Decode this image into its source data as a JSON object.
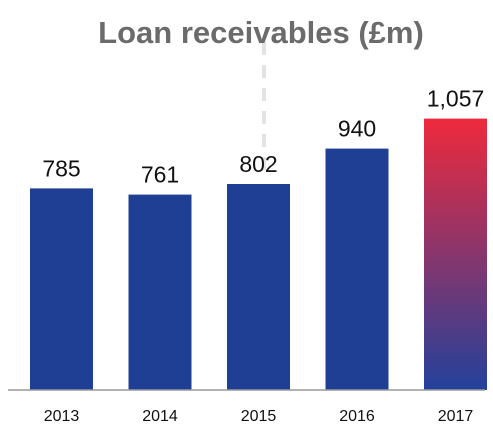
{
  "chart_data": {
    "type": "bar",
    "title": "Loan receivables (£m)",
    "categories": [
      "2013",
      "2014",
      "2015",
      "2016",
      "2017"
    ],
    "values": [
      785,
      761,
      802,
      940,
      1057
    ],
    "value_labels": [
      "785",
      "761",
      "802",
      "940",
      "1,057"
    ],
    "xlabel": "",
    "ylabel": "",
    "ylim": [
      0,
      1300
    ],
    "grid": false,
    "colors": {
      "bar": "#1f3f94",
      "highlight_top": "#ee2a3c",
      "highlight_bottom": "#23419b",
      "baseline": "#9a9a9a",
      "title": "#6b6b6b",
      "divider": "#e3e3e3"
    }
  }
}
